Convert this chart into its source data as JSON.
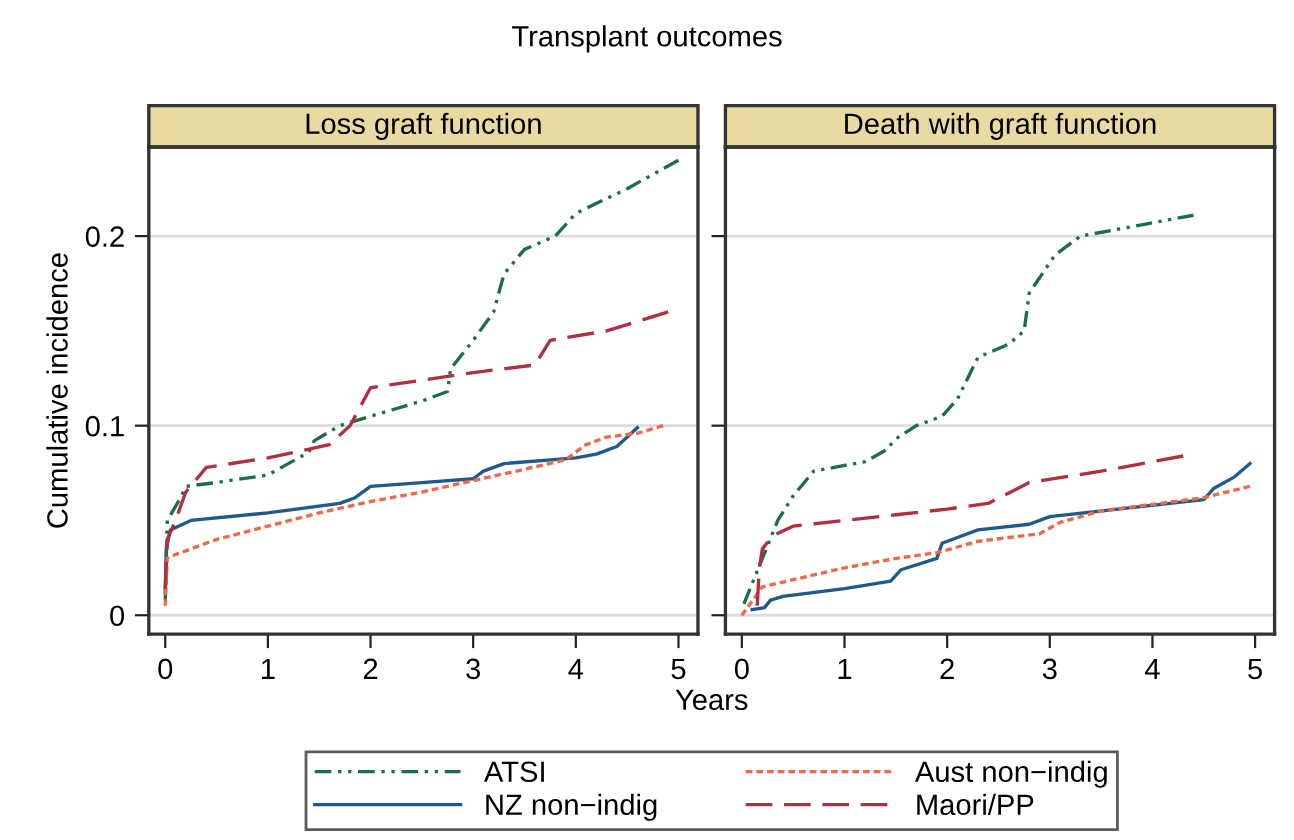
{
  "chart_data": [
    {
      "type": "line",
      "subtitle": "Transplant outcomes",
      "title": "Loss graft function",
      "xlabel": "Years",
      "ylabel": "Cumulative incidence",
      "xlim": [
        -0.16,
        5.19
      ],
      "ylim": [
        -0.01,
        0.247
      ],
      "xticks": [
        0,
        1,
        2,
        3,
        4,
        5
      ],
      "yticks": [
        0,
        0.1,
        0.2
      ],
      "grid": "y",
      "legend": "bottom",
      "series": [
        {
          "name": "ATSI",
          "color": "#1b6e48",
          "line_style": "dashdotdot",
          "x": [
            0,
            0.02,
            0.15,
            0.2,
            0.5,
            1,
            1.4,
            1.45,
            1.7,
            2,
            2.5,
            2.75,
            2.78,
            3,
            3.2,
            3.3,
            3.5,
            3.8,
            4,
            4.5,
            5
          ],
          "values": [
            0.008,
            0.05,
            0.062,
            0.068,
            0.07,
            0.074,
            0.086,
            0.092,
            0.1,
            0.105,
            0.113,
            0.118,
            0.13,
            0.145,
            0.16,
            0.18,
            0.193,
            0.2,
            0.212,
            0.225,
            0.24
          ]
        },
        {
          "name": "Aust non−indig",
          "color": "#f0684a",
          "line_style": "dashed",
          "x": [
            0,
            0.02,
            0.1,
            0.5,
            1,
            1.5,
            2,
            2.5,
            3,
            3.5,
            3.9,
            4.1,
            4.3,
            4.6,
            4.85
          ],
          "values": [
            0.005,
            0.03,
            0.032,
            0.04,
            0.047,
            0.054,
            0.06,
            0.065,
            0.071,
            0.077,
            0.082,
            0.09,
            0.094,
            0.096,
            0.1
          ]
        },
        {
          "name": "NZ non−indig",
          "color": "#1f5a8a",
          "line_style": "solid",
          "x": [
            0,
            0.01,
            0.05,
            0.25,
            1,
            1.7,
            1.85,
            2,
            2.5,
            3,
            3.1,
            3.3,
            4,
            4.2,
            4.4,
            4.6
          ],
          "values": [
            0.012,
            0.035,
            0.045,
            0.05,
            0.054,
            0.059,
            0.062,
            0.068,
            0.07,
            0.072,
            0.076,
            0.08,
            0.083,
            0.085,
            0.089,
            0.099
          ]
        },
        {
          "name": "Maori/PP",
          "color": "#b03040",
          "line_style": "longdashed",
          "x": [
            0,
            0.02,
            0.1,
            0.2,
            0.4,
            1,
            1.6,
            1.8,
            2,
            2.5,
            3,
            3.6,
            3.75,
            4.3,
            4.9
          ],
          "values": [
            0.014,
            0.04,
            0.05,
            0.065,
            0.078,
            0.083,
            0.09,
            0.1,
            0.12,
            0.124,
            0.128,
            0.132,
            0.145,
            0.15,
            0.16
          ]
        }
      ]
    },
    {
      "type": "line",
      "title": "Death with graft function",
      "xlim": [
        -0.16,
        5.19
      ],
      "ylim": [
        -0.01,
        0.247
      ],
      "xticks": [
        0,
        1,
        2,
        3,
        4,
        5
      ],
      "yticks": [
        0,
        0.1,
        0.2
      ],
      "grid": "y",
      "tick_labels": "x",
      "series": [
        {
          "color": "#1b6e48",
          "line_style": "dashdotdot",
          "x": [
            0.02,
            0.2,
            0.35,
            0.5,
            0.7,
            1,
            1.2,
            1.4,
            1.5,
            1.7,
            1.95,
            2.1,
            2.3,
            2.6,
            2.75,
            2.8,
            3.05,
            3.3,
            3.6,
            4.4
          ],
          "values": [
            0.006,
            0.03,
            0.05,
            0.063,
            0.076,
            0.079,
            0.081,
            0.087,
            0.093,
            0.1,
            0.105,
            0.114,
            0.136,
            0.143,
            0.15,
            0.17,
            0.19,
            0.2,
            0.203,
            0.211
          ]
        },
        {
          "color": "#f0684a",
          "line_style": "dashed",
          "x": [
            0,
            0.2,
            1,
            1.5,
            1.9,
            2.3,
            2.9,
            3.1,
            3.5,
            4.5,
            4.95
          ],
          "values": [
            0,
            0.015,
            0.025,
            0.03,
            0.033,
            0.039,
            0.043,
            0.049,
            0.055,
            0.062,
            0.068
          ]
        },
        {
          "color": "#1f5a8a",
          "line_style": "solid",
          "x": [
            0.1,
            0.22,
            0.28,
            0.4,
            1,
            1.45,
            1.55,
            1.9,
            1.95,
            2.3,
            2.8,
            3.0,
            4.5,
            4.6,
            4.8,
            4.95
          ],
          "values": [
            0.003,
            0.004,
            0.008,
            0.01,
            0.014,
            0.018,
            0.024,
            0.03,
            0.038,
            0.045,
            0.048,
            0.052,
            0.061,
            0.067,
            0.073,
            0.08
          ]
        },
        {
          "color": "#b03040",
          "line_style": "longdashed",
          "x": [
            0.15,
            0.17,
            0.2,
            0.3,
            0.5,
            1,
            1.5,
            2,
            2.4,
            2.8,
            3.5,
            4.3
          ],
          "values": [
            0.005,
            0.025,
            0.035,
            0.042,
            0.047,
            0.05,
            0.053,
            0.056,
            0.059,
            0.07,
            0.076,
            0.084
          ]
        }
      ]
    }
  ]
}
